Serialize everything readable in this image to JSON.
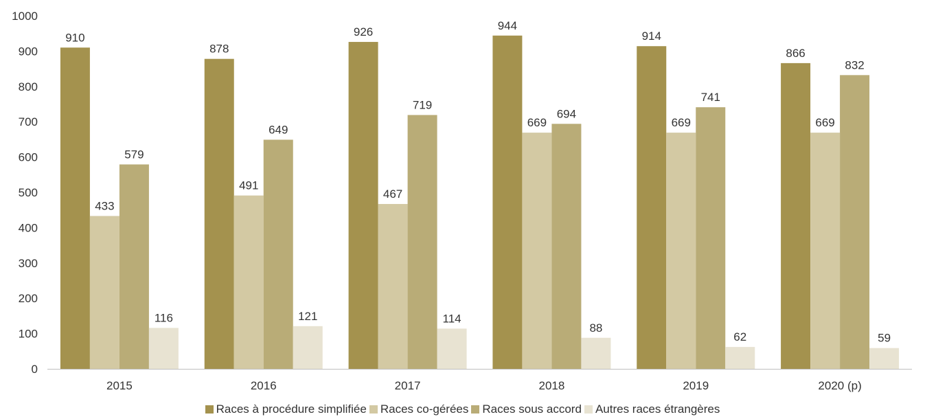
{
  "chart_data": {
    "type": "bar",
    "categories": [
      "2015",
      "2016",
      "2017",
      "2018",
      "2019",
      "2020 (p)"
    ],
    "series": [
      {
        "name": "Races à procédure simplifiée",
        "values": [
          910,
          878,
          926,
          944,
          914,
          866
        ],
        "color": "#a4924e"
      },
      {
        "name": "Races co-gérées",
        "values": [
          433,
          491,
          467,
          669,
          669,
          669
        ],
        "color": "#d3c9a3"
      },
      {
        "name": "Races sous accord",
        "values": [
          579,
          649,
          719,
          694,
          741,
          832
        ],
        "color": "#b9ac77"
      },
      {
        "name": "Autres races étrangères",
        "values": [
          116,
          121,
          114,
          88,
          62,
          59
        ],
        "color": "#e8e3d2"
      }
    ],
    "ylim": [
      0,
      1000
    ],
    "yticks": [
      0,
      100,
      200,
      300,
      400,
      500,
      600,
      700,
      800,
      900,
      1000
    ],
    "grid": false,
    "legend_position": "bottom"
  }
}
